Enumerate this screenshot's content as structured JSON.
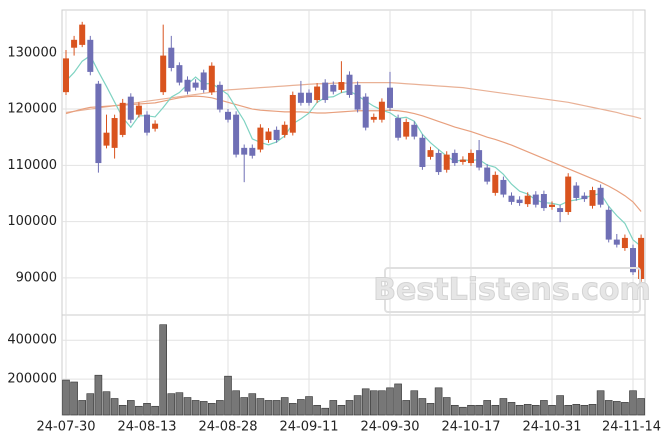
{
  "chart_data": {
    "type": "candlestick",
    "categories": [
      "24-07-30",
      null,
      null,
      null,
      null,
      null,
      null,
      null,
      null,
      null,
      "24-08-13",
      null,
      null,
      null,
      null,
      null,
      null,
      null,
      null,
      null,
      "24-08-28",
      null,
      null,
      null,
      null,
      null,
      null,
      null,
      null,
      null,
      "24-09-11",
      null,
      null,
      null,
      null,
      null,
      null,
      null,
      null,
      null,
      "24-09-30",
      null,
      null,
      null,
      null,
      null,
      null,
      null,
      null,
      null,
      "24-10-17",
      null,
      null,
      null,
      null,
      null,
      null,
      null,
      null,
      null,
      "24-10-31",
      null,
      null,
      null,
      null,
      null,
      null,
      null,
      null,
      null,
      "24-11-14",
      null
    ],
    "open": [
      123000,
      130900,
      131400,
      132300,
      124500,
      113500,
      113100,
      115400,
      122200,
      119000,
      119000,
      116500,
      123000,
      130900,
      127800,
      125200,
      124700,
      126500,
      123000,
      124300,
      119500,
      119000,
      113100,
      113100,
      112800,
      114500,
      116300,
      115400,
      115800,
      122900,
      122900,
      121600,
      124700,
      124300,
      123400,
      126100,
      124300,
      122200,
      118100,
      118100,
      123800,
      118400,
      115100,
      117200,
      114900,
      111500,
      112200,
      109200,
      112200,
      110600,
      110400,
      112700,
      109600,
      105100,
      107400,
      104600,
      103900,
      103100,
      104800,
      104900,
      102600,
      102400,
      101700,
      106400,
      104600,
      102800,
      106000,
      102100,
      96800,
      95300,
      95300,
      89800
    ],
    "high": [
      130500,
      133000,
      135500,
      133000,
      125000,
      119000,
      119000,
      121800,
      122800,
      121200,
      119600,
      118000,
      135000,
      133000,
      128300,
      125800,
      125300,
      127000,
      128300,
      124900,
      120000,
      119600,
      113700,
      113700,
      117300,
      116600,
      116900,
      117800,
      123100,
      125000,
      123500,
      124600,
      125300,
      124900,
      128500,
      126700,
      124900,
      122800,
      119200,
      121900,
      126600,
      119000,
      118300,
      117800,
      115500,
      113300,
      112800,
      112500,
      112800,
      111600,
      112800,
      114500,
      110200,
      108900,
      108000,
      105200,
      104500,
      105200,
      105400,
      105500,
      103600,
      103000,
      108600,
      107000,
      105200,
      106200,
      106600,
      102700,
      97800,
      97700,
      95900,
      97700
    ],
    "low": [
      122500,
      129500,
      131000,
      126000,
      108700,
      113000,
      111200,
      115000,
      117500,
      118500,
      115300,
      116000,
      122500,
      126700,
      124200,
      122600,
      123300,
      122900,
      122500,
      119400,
      117600,
      111400,
      107000,
      111200,
      112300,
      114000,
      114000,
      114900,
      115300,
      120600,
      120600,
      121100,
      121100,
      122600,
      122900,
      122000,
      119400,
      116200,
      117600,
      117600,
      119700,
      114400,
      114600,
      114600,
      109200,
      111000,
      108300,
      108700,
      109900,
      110100,
      109900,
      109100,
      106600,
      104600,
      104300,
      103000,
      102800,
      102600,
      102500,
      101900,
      102100,
      99900,
      101200,
      103700,
      103500,
      102300,
      102500,
      96300,
      95400,
      94800,
      90500,
      89300
    ],
    "close": [
      129000,
      132300,
      135000,
      126600,
      110400,
      115800,
      118400,
      121100,
      118100,
      120600,
      115800,
      117400,
      129500,
      127300,
      124700,
      123100,
      123800,
      123400,
      127700,
      119900,
      118100,
      111900,
      111900,
      111700,
      116700,
      116000,
      114500,
      117200,
      122500,
      121100,
      121100,
      124000,
      121600,
      123100,
      124800,
      122500,
      119900,
      116700,
      118600,
      121300,
      120200,
      114900,
      117700,
      115100,
      109700,
      112700,
      108800,
      111900,
      110400,
      111000,
      112200,
      109600,
      107100,
      108300,
      104800,
      103500,
      103300,
      104600,
      103000,
      102400,
      103000,
      101700,
      108000,
      104200,
      104000,
      105600,
      103000,
      96800,
      95900,
      97100,
      91000,
      97100
    ],
    "up_color": "#d9531e",
    "down_color": "#6f6fb5",
    "ylim": [
      83400,
      137600
    ],
    "yticks": [
      90000,
      100000,
      110000,
      120000,
      130000
    ],
    "grid": true,
    "moving_averages": [
      {
        "color": "#e9b196",
        "values": [
          119400,
          119600,
          119800,
          120000,
          120200,
          120400,
          120600,
          120800,
          121000,
          121200,
          121400,
          121600,
          121800,
          122000,
          122200,
          122400,
          122600,
          122800,
          123000,
          123200,
          123400,
          123500,
          123600,
          123700,
          123800,
          123900,
          124000,
          124100,
          124200,
          124300,
          124400,
          124500,
          124500,
          124600,
          124600,
          124600,
          124700,
          124700,
          124700,
          124700,
          124700,
          124600,
          124500,
          124400,
          124300,
          124200,
          124100,
          124000,
          123900,
          123800,
          123600,
          123400,
          123200,
          123000,
          122800,
          122600,
          122400,
          122200,
          122000,
          121800,
          121600,
          121400,
          121200,
          120900,
          120600,
          120300,
          120000,
          119700,
          119400,
          119000,
          118700,
          118300
        ]
      },
      {
        "color": "#e8a07e",
        "values": [
          119200,
          119600,
          120000,
          120300,
          120400,
          120500,
          120600,
          120700,
          120800,
          120900,
          121000,
          121100,
          121400,
          121700,
          122000,
          122200,
          122300,
          122200,
          122000,
          121600,
          121200,
          120800,
          120400,
          120000,
          119800,
          119700,
          119600,
          119500,
          119500,
          119500,
          119400,
          119300,
          119300,
          119400,
          119500,
          119600,
          119700,
          119700,
          119700,
          119700,
          119800,
          119700,
          119500,
          119200,
          118800,
          118300,
          117800,
          117300,
          116800,
          116400,
          116000,
          115500,
          115000,
          114600,
          114100,
          113600,
          113000,
          112400,
          111800,
          111200,
          110600,
          110000,
          109400,
          108800,
          108200,
          107600,
          107000,
          106300,
          105500,
          104600,
          103500,
          101800
        ]
      },
      {
        "color": "#7fd3c2",
        "values": [
          125000,
          126500,
          128500,
          129500,
          126660,
          124020,
          121240,
          118460,
          116760,
          118800,
          118800,
          118600,
          120280,
          122120,
          122940,
          124400,
          125680,
          124460,
          124540,
          123580,
          122580,
          120200,
          117900,
          114700,
          114060,
          113640,
          114160,
          115220,
          117380,
          118260,
          119280,
          121180,
          122060,
          122180,
          122920,
          123200,
          122380,
          121400,
          120500,
          119800,
          119340,
          118340,
          118540,
          117840,
          115520,
          114020,
          112800,
          111640,
          110700,
          110960,
          110860,
          111020,
          110060,
          109640,
          108400,
          106660,
          105400,
          104900,
          103840,
          103360,
          103260,
          102940,
          103620,
          103860,
          104180,
          104700,
          104960,
          102720,
          101060,
          99680,
          96760,
          95580
        ]
      }
    ],
    "volume": {
      "color": "#777777",
      "ylim": [
        15000,
        530000
      ],
      "yticks": [
        200000,
        400000
      ],
      "values": [
        195000,
        185000,
        90000,
        125000,
        220000,
        135000,
        100000,
        65000,
        90000,
        60000,
        75000,
        60000,
        480000,
        125000,
        130000,
        105000,
        90000,
        85000,
        75000,
        90000,
        215000,
        140000,
        105000,
        125000,
        100000,
        90000,
        90000,
        105000,
        75000,
        95000,
        110000,
        65000,
        50000,
        90000,
        65000,
        90000,
        115000,
        150000,
        140000,
        140000,
        155000,
        175000,
        90000,
        140000,
        100000,
        75000,
        155000,
        105000,
        65000,
        55000,
        65000,
        65000,
        90000,
        65000,
        100000,
        80000,
        65000,
        70000,
        65000,
        90000,
        65000,
        115000,
        65000,
        70000,
        65000,
        70000,
        140000,
        90000,
        85000,
        80000,
        140000,
        100000
      ]
    },
    "watermark": "BestListens.com"
  }
}
